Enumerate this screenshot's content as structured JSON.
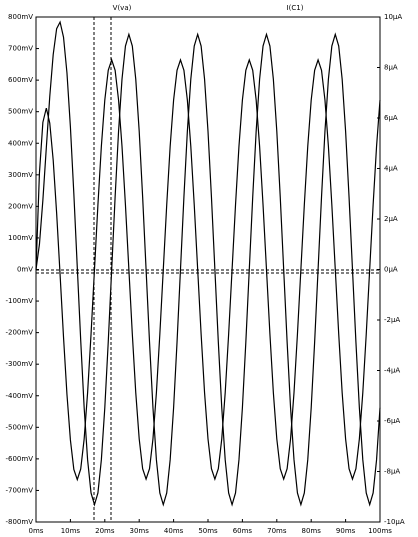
{
  "chart_data": {
    "type": "line",
    "x": [
      0,
      1,
      2,
      3,
      4,
      5,
      6,
      7,
      8,
      9,
      10,
      11,
      12,
      13,
      14,
      15,
      16,
      17,
      18,
      19,
      20,
      21,
      22,
      23,
      24,
      25,
      26,
      27,
      28,
      29,
      30,
      31,
      32,
      33,
      34,
      35,
      36,
      37,
      38,
      39,
      40,
      41,
      42,
      43,
      44,
      45,
      46,
      47,
      48,
      49,
      50,
      51,
      52,
      53,
      54,
      55,
      56,
      57,
      58,
      59,
      60,
      61,
      62,
      63,
      64,
      65,
      66,
      67,
      68,
      69,
      70,
      71,
      72,
      73,
      74,
      75,
      76,
      77,
      78,
      79,
      80,
      81,
      82,
      83,
      84,
      85,
      86,
      87,
      88,
      89,
      90,
      91,
      92,
      93,
      94,
      95,
      96,
      97,
      98,
      99,
      100
    ],
    "series": [
      {
        "name": "V(va)",
        "color": "#000000",
        "axis": "y",
        "values": [
          0,
          80,
          220,
          386,
          548,
          681,
          763,
          784,
          736,
          623,
          452,
          240,
          7,
          -225,
          -438,
          -603,
          -708,
          -745,
          -708,
          -603,
          -438,
          -230,
          0,
          230,
          438,
          603,
          708,
          745,
          708,
          603,
          438,
          230,
          0,
          -230,
          -438,
          -603,
          -708,
          -745,
          -708,
          -603,
          -438,
          -230,
          0,
          230,
          438,
          603,
          708,
          745,
          708,
          603,
          438,
          230,
          0,
          -230,
          -438,
          -603,
          -708,
          -745,
          -708,
          -603,
          -438,
          -230,
          0,
          230,
          438,
          603,
          708,
          745,
          708,
          603,
          438,
          230,
          0,
          -230,
          -438,
          -603,
          -708,
          -745,
          -708,
          -603,
          -438,
          -230,
          0,
          230,
          438,
          603,
          708,
          745,
          708,
          603,
          438,
          230,
          0,
          -230,
          -438,
          -603,
          -708,
          -745,
          -708,
          -603,
          -438
        ]
      },
      {
        "name": "I(C1)",
        "color": "#000000",
        "axis": "y2",
        "values": [
          0,
          3.82,
          5.83,
          6.39,
          5.8,
          4.33,
          2.23,
          -0.2,
          -2.68,
          -4.95,
          -6.75,
          -7.92,
          -8.32,
          -7.9,
          -6.71,
          -4.88,
          -2.56,
          0,
          2.56,
          4.88,
          6.71,
          7.89,
          8.3,
          7.89,
          6.71,
          4.88,
          2.56,
          0,
          -2.56,
          -4.88,
          -6.71,
          -7.89,
          -8.3,
          -7.89,
          -6.71,
          -4.88,
          -2.56,
          0,
          2.56,
          4.88,
          6.71,
          7.89,
          8.3,
          7.89,
          6.71,
          4.88,
          2.56,
          0,
          -2.56,
          -4.88,
          -6.71,
          -7.89,
          -8.3,
          -7.89,
          -6.71,
          -4.88,
          -2.56,
          0,
          2.56,
          4.88,
          6.71,
          7.89,
          8.3,
          7.89,
          6.71,
          4.88,
          2.56,
          0,
          -2.56,
          -4.88,
          -6.71,
          -7.89,
          -8.3,
          -7.89,
          -6.71,
          -4.88,
          -2.56,
          0,
          2.56,
          4.88,
          6.71,
          7.89,
          8.3,
          7.89,
          6.71,
          4.88,
          2.56,
          0,
          -2.56,
          -4.88,
          -6.71,
          -7.89,
          -8.3,
          -7.89,
          -6.71,
          -4.88,
          -2.56,
          0,
          2.56,
          4.88,
          6.71
        ]
      }
    ],
    "xlim": [
      0,
      100
    ],
    "xticks": [
      {
        "value": 0,
        "label": "0ms"
      },
      {
        "value": 10,
        "label": "10ms"
      },
      {
        "value": 20,
        "label": "20ms"
      },
      {
        "value": 30,
        "label": "30ms"
      },
      {
        "value": 40,
        "label": "40ms"
      },
      {
        "value": 50,
        "label": "50ms"
      },
      {
        "value": 60,
        "label": "60ms"
      },
      {
        "value": 70,
        "label": "70ms"
      },
      {
        "value": 80,
        "label": "80ms"
      },
      {
        "value": 90,
        "label": "90ms"
      },
      {
        "value": 100,
        "label": "100ms"
      }
    ],
    "ylim": [
      -800,
      800
    ],
    "yticks": [
      {
        "value": -800,
        "label": "-800mV"
      },
      {
        "value": -700,
        "label": "-700mV"
      },
      {
        "value": -600,
        "label": "-600mV"
      },
      {
        "value": -500,
        "label": "-500mV"
      },
      {
        "value": -400,
        "label": "-400mV"
      },
      {
        "value": -300,
        "label": "-300mV"
      },
      {
        "value": -200,
        "label": "-200mV"
      },
      {
        "value": -100,
        "label": "-100mV"
      },
      {
        "value": 0,
        "label": "0mV"
      },
      {
        "value": 100,
        "label": "100mV"
      },
      {
        "value": 200,
        "label": "200mV"
      },
      {
        "value": 300,
        "label": "300mV"
      },
      {
        "value": 400,
        "label": "400mV"
      },
      {
        "value": 500,
        "label": "500mV"
      },
      {
        "value": 600,
        "label": "600mV"
      },
      {
        "value": 700,
        "label": "700mV"
      },
      {
        "value": 800,
        "label": "800mV"
      }
    ],
    "y2lim": [
      -10,
      10
    ],
    "y2ticks": [
      {
        "value": -10,
        "label": "-10µA"
      },
      {
        "value": -8,
        "label": "-8µA"
      },
      {
        "value": -6,
        "label": "-6µA"
      },
      {
        "value": -4,
        "label": "-4µA"
      },
      {
        "value": -2,
        "label": "-2µA"
      },
      {
        "value": 0,
        "label": "0µA"
      },
      {
        "value": 2,
        "label": "2µA"
      },
      {
        "value": 4,
        "label": "4µA"
      },
      {
        "value": 6,
        "label": "6µA"
      },
      {
        "value": 8,
        "label": "8µA"
      },
      {
        "value": 10,
        "label": "10µA"
      }
    ],
    "grid": false
  }
}
